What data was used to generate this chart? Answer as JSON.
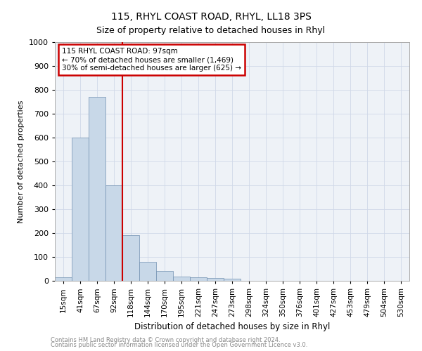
{
  "title1": "115, RHYL COAST ROAD, RHYL, LL18 3PS",
  "title2": "Size of property relative to detached houses in Rhyl",
  "xlabel": "Distribution of detached houses by size in Rhyl",
  "ylabel": "Number of detached properties",
  "bar_values": [
    15,
    600,
    770,
    400,
    190,
    78,
    40,
    18,
    15,
    12,
    8,
    0,
    0,
    0,
    0,
    0,
    0,
    0,
    0,
    0,
    0
  ],
  "bar_labels": [
    "15sqm",
    "41sqm",
    "67sqm",
    "92sqm",
    "118sqm",
    "144sqm",
    "170sqm",
    "195sqm",
    "221sqm",
    "247sqm",
    "273sqm",
    "298sqm",
    "324sqm",
    "350sqm",
    "376sqm",
    "401sqm",
    "427sqm",
    "453sqm",
    "479sqm",
    "504sqm",
    "530sqm"
  ],
  "bar_color": "#c8d8e8",
  "bar_edge_color": "#7090b0",
  "vline_x": 3.5,
  "annotation_line1": "115 RHYL COAST ROAD: 97sqm",
  "annotation_line2": "← 70% of detached houses are smaller (1,469)",
  "annotation_line3": "30% of semi-detached houses are larger (625) →",
  "annotation_box_color": "#ffffff",
  "annotation_box_edge": "#cc0000",
  "vline_color": "#cc0000",
  "grid_color": "#d0d8e8",
  "background_color": "#eef2f7",
  "ylim": [
    0,
    1000
  ],
  "yticks": [
    0,
    100,
    200,
    300,
    400,
    500,
    600,
    700,
    800,
    900,
    1000
  ],
  "footer1": "Contains HM Land Registry data © Crown copyright and database right 2024.",
  "footer2": "Contains public sector information licensed under the Open Government Licence v3.0."
}
